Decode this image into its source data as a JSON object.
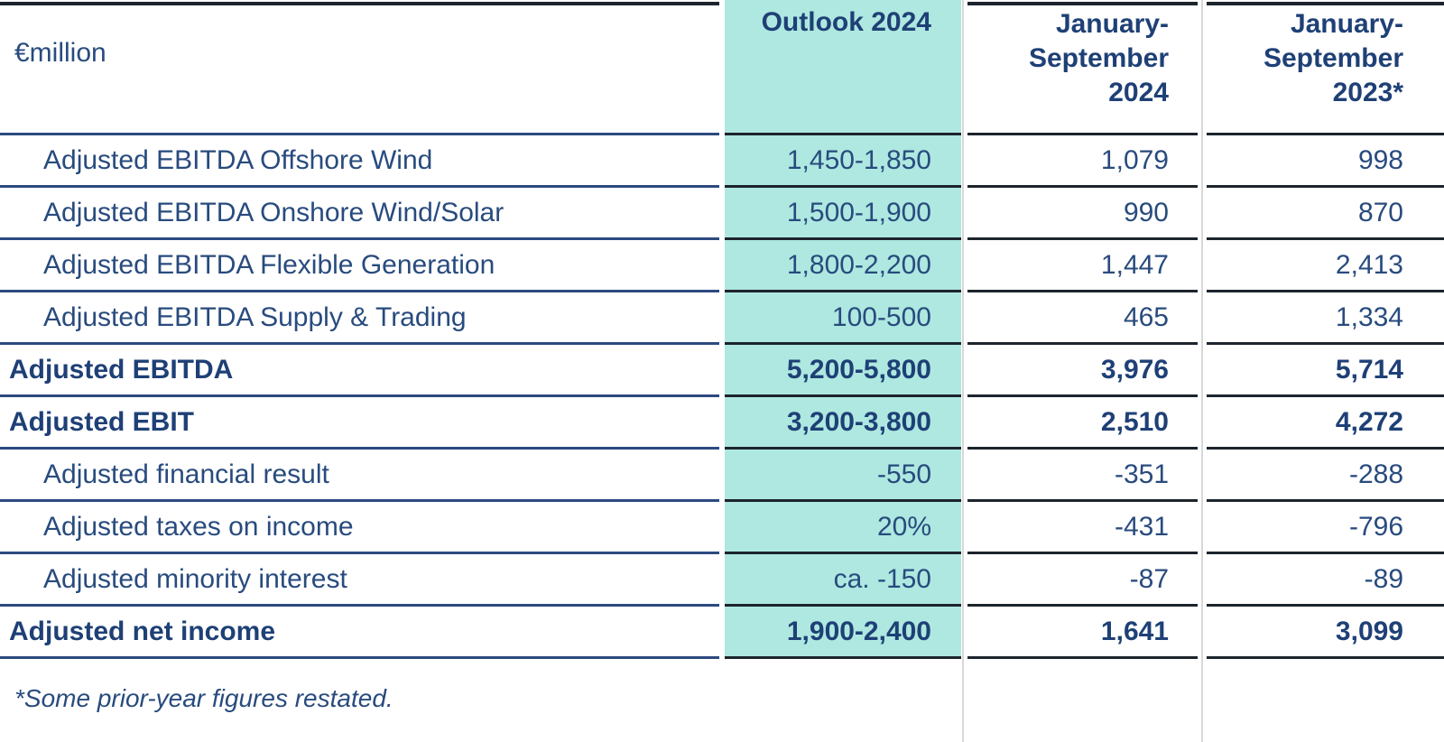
{
  "colors": {
    "text": "#284b7e",
    "text_bold": "#1e4076",
    "teal_highlight": "#aee8e0",
    "label_row_line": "#2c4a80",
    "value_row_line": "#1c242c",
    "column_separator": "#d8d8d8",
    "background": "#ffffff"
  },
  "header": {
    "unit_label": "€million",
    "outlook_column": "Outlook 2024",
    "period_2024_column": [
      "January-",
      "September",
      "2024"
    ],
    "period_2023_column": [
      "January-",
      "September",
      "2023*"
    ]
  },
  "rows": [
    {
      "label": "Adjusted EBITDA Offshore Wind",
      "outlook_2024": "1,450-1,850",
      "jan_sep_2024": "1,079",
      "jan_sep_2023": "998",
      "emphasized": false
    },
    {
      "label": "Adjusted EBITDA Onshore Wind/Solar",
      "outlook_2024": "1,500-1,900",
      "jan_sep_2024": "990",
      "jan_sep_2023": "870",
      "emphasized": false
    },
    {
      "label": "Adjusted EBITDA Flexible Generation",
      "outlook_2024": "1,800-2,200",
      "jan_sep_2024": "1,447",
      "jan_sep_2023": "2,413",
      "emphasized": false
    },
    {
      "label": "Adjusted EBITDA Supply & Trading",
      "outlook_2024": "100-500",
      "jan_sep_2024": "465",
      "jan_sep_2023": "1,334",
      "emphasized": false
    },
    {
      "label": "Adjusted EBITDA",
      "outlook_2024": "5,200-5,800",
      "jan_sep_2024": "3,976",
      "jan_sep_2023": "5,714",
      "emphasized": true
    },
    {
      "label": "Adjusted EBIT",
      "outlook_2024": "3,200-3,800",
      "jan_sep_2024": "2,510",
      "jan_sep_2023": "4,272",
      "emphasized": true
    },
    {
      "label": "Adjusted financial result",
      "outlook_2024": "-550",
      "jan_sep_2024": "-351",
      "jan_sep_2023": "-288",
      "emphasized": false
    },
    {
      "label": "Adjusted taxes on income",
      "outlook_2024": "20%",
      "jan_sep_2024": "-431",
      "jan_sep_2023": "-796",
      "emphasized": false
    },
    {
      "label": "Adjusted minority interest",
      "outlook_2024": "ca. -150",
      "jan_sep_2024": "-87",
      "jan_sep_2023": "-89",
      "emphasized": false
    },
    {
      "label": "Adjusted net income",
      "outlook_2024": "1,900-2,400",
      "jan_sep_2024": "1,641",
      "jan_sep_2023": "3,099",
      "emphasized": true
    }
  ],
  "footnote": "*Some prior-year figures restated."
}
